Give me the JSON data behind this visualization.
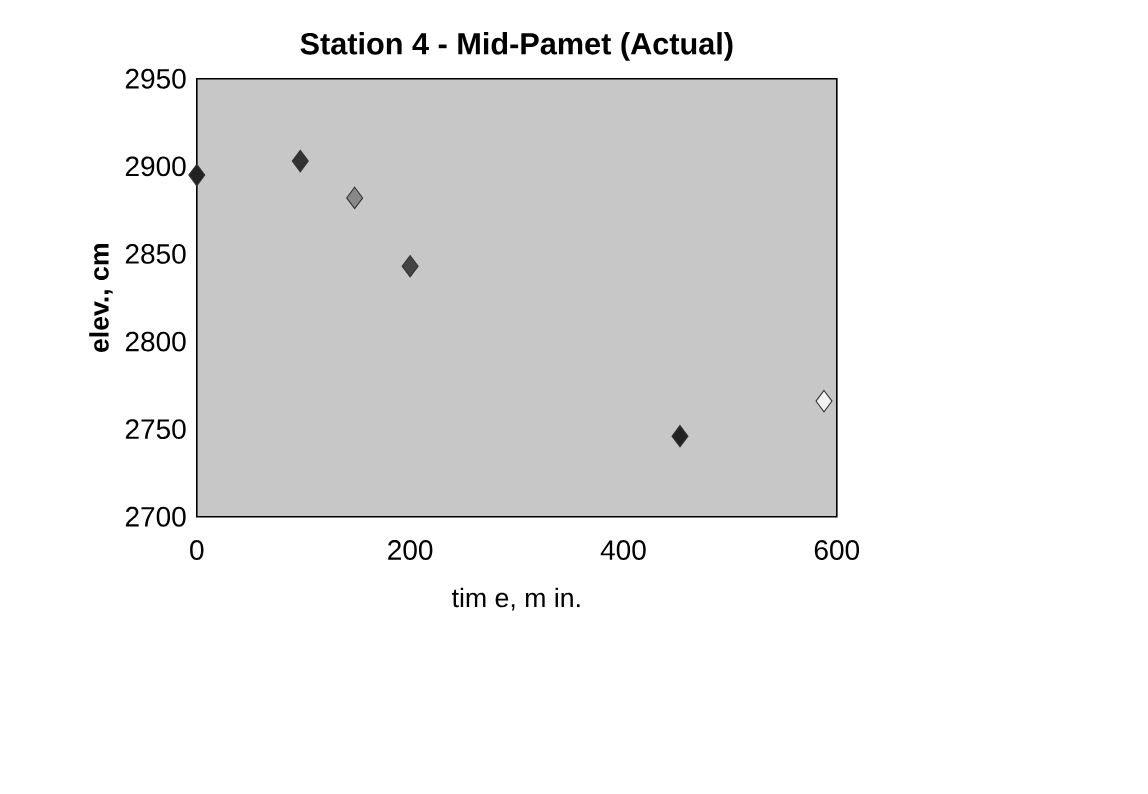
{
  "chart_data": {
    "type": "scatter",
    "title": "Station 4 - Mid-Pamet (Actual)",
    "xlabel": "tim e, m in.",
    "ylabel": "elev., cm",
    "x": [
      0,
      97,
      148,
      200,
      453,
      588
    ],
    "values": [
      2895,
      2903,
      2882,
      2843,
      2746,
      2766
    ],
    "colors": [
      "#222222",
      "#333333",
      "#888888",
      "#444444",
      "#222222",
      "#f2f2f2"
    ],
    "marker": "diamond",
    "xlim": [
      0,
      600
    ],
    "xticks": [
      0,
      200,
      400,
      600
    ],
    "ylim": [
      2700,
      2950
    ],
    "yticks": [
      2700,
      2750,
      2800,
      2850,
      2900,
      2950
    ]
  }
}
